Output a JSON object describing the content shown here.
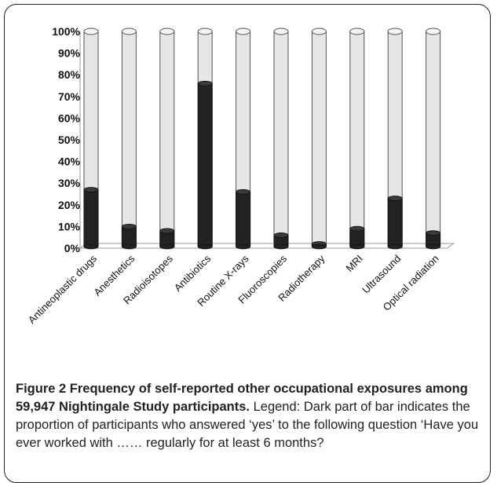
{
  "chart_data": {
    "type": "bar",
    "stacked": true,
    "categories": [
      "Antineoplastic drugs",
      "Anesthetics",
      "Radioisotopes",
      "Antibiotics",
      "Routine X-rays",
      "Fluoroscopies",
      "Radiotherapy",
      "MRI",
      "Ultrasound",
      "Optical radiation"
    ],
    "series": [
      {
        "values": [
          27,
          10,
          8,
          76,
          26,
          6,
          2,
          9,
          23,
          7
        ]
      },
      {
        "values": [
          73,
          90,
          92,
          24,
          74,
          94,
          98,
          91,
          77,
          93
        ]
      }
    ],
    "yticks": [
      "0%",
      "10%",
      "20%",
      "30%",
      "40%",
      "50%",
      "60%",
      "70%",
      "80%",
      "90%",
      "100%"
    ],
    "ylim": [
      0,
      100
    ],
    "grid": false,
    "colors": {
      "yes": "#222222",
      "no": "#e6e6e6",
      "outline": "#555555"
    }
  },
  "caption": {
    "title": "Figure 2 Frequency of self-reported other occupational exposures among 59,947 Nightingale Study participants.",
    "text": "Legend: Dark part of bar indicates the proportion of participants who answered ‘yes’ to the following question ‘Have you ever worked with …… regularly for at least 6 months?"
  }
}
